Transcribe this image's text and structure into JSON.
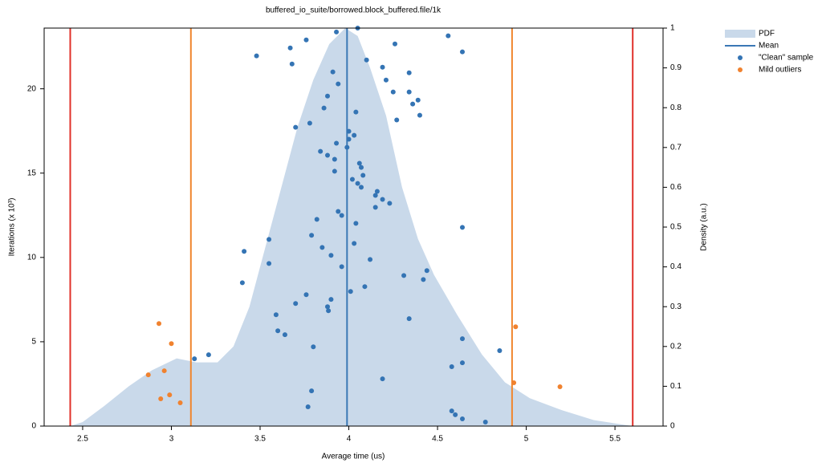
{
  "chart_data": {
    "type": "scatter",
    "title": "buffered_io_suite/borrowed.block_buffered.file/1k",
    "x_label": "Average time (us)",
    "y_label": "Iterations (x 10³)",
    "y2_label": "Density (a.u.)",
    "xlim": [
      2.283,
      5.771
    ],
    "xticks": [
      2.5,
      3,
      3.5,
      4,
      4.5,
      5,
      5.5
    ],
    "ylim": [
      0,
      23.6
    ],
    "yticks": [
      0,
      5,
      10,
      15,
      20
    ],
    "y2lim": [
      0,
      1
    ],
    "y2ticks": [
      0,
      0.1,
      0.2,
      0.3,
      0.4,
      0.5,
      0.6,
      0.7,
      0.8,
      0.9,
      1
    ],
    "legend": "outside-right",
    "vlines": [
      {
        "x": 2.43,
        "color": "#e0302a"
      },
      {
        "x": 3.11,
        "color": "#f0862e"
      },
      {
        "x": 4.92,
        "color": "#f0862e"
      },
      {
        "x": 5.6,
        "color": "#e0302a"
      }
    ],
    "series": [
      {
        "name": "PDF",
        "style": "area",
        "axis": "y2",
        "color": "#c9d9ea",
        "x": [
          2.43,
          2.5,
          2.62,
          2.76,
          2.89,
          3.03,
          3.14,
          3.26,
          3.35,
          3.44,
          3.53,
          3.62,
          3.71,
          3.8,
          3.89,
          3.98,
          4.05,
          4.12,
          4.21,
          4.3,
          4.39,
          4.48,
          4.61,
          4.75,
          4.88,
          5.02,
          5.2,
          5.38,
          5.6
        ],
        "values": [
          0,
          0.01,
          0.05,
          0.1,
          0.14,
          0.17,
          0.16,
          0.16,
          0.2,
          0.3,
          0.45,
          0.6,
          0.75,
          0.87,
          0.96,
          1,
          0.98,
          0.9,
          0.78,
          0.6,
          0.47,
          0.38,
          0.28,
          0.18,
          0.11,
          0.07,
          0.04,
          0.015,
          0
        ]
      },
      {
        "name": "Mean",
        "style": "vline",
        "color": "#3a78b5",
        "x": [
          3.99
        ]
      },
      {
        "name": "\"Clean\" sample",
        "style": "points",
        "color": "#3474b4",
        "x": [
          4.05,
          3.93,
          4.56,
          3.76,
          4.26,
          3.67,
          4.64,
          3.48,
          4.1,
          3.68,
          4.19,
          3.91,
          4.34,
          4.21,
          3.94,
          4.34,
          4.25,
          4.39,
          3.88,
          4.36,
          3.86,
          4.04,
          4.4,
          4.27,
          3.78,
          3.7,
          4.0,
          4.03,
          4.0,
          3.93,
          3.99,
          3.84,
          3.88,
          3.92,
          4.06,
          4.07,
          4.08,
          3.92,
          4.02,
          4.05,
          4.07,
          4.16,
          4.15,
          4.19,
          4.23,
          4.15,
          3.94,
          3.96,
          3.82,
          4.04,
          4.64,
          3.79,
          3.55,
          4.03,
          3.85,
          3.41,
          3.9,
          4.12,
          3.55,
          3.96,
          4.44,
          4.31,
          4.42,
          3.4,
          4.09,
          4.01,
          3.76,
          3.7,
          3.9,
          3.88,
          3.885,
          3.59,
          4.34,
          3.6,
          3.64,
          4.64,
          4.85,
          3.8,
          3.21,
          3.13,
          4.64,
          4.58,
          4.19,
          3.79,
          4.58,
          4.6,
          3.77,
          4.64,
          4.77
        ],
        "values": [
          23.6,
          23.37,
          23.14,
          22.9,
          22.66,
          22.42,
          22.19,
          21.95,
          21.71,
          21.47,
          21.28,
          21.0,
          20.95,
          20.52,
          20.29,
          19.81,
          19.81,
          19.33,
          19.57,
          19.1,
          18.86,
          18.62,
          18.43,
          18.15,
          17.96,
          17.72,
          17.48,
          17.24,
          17.01,
          16.77,
          16.53,
          16.29,
          16.06,
          15.82,
          15.58,
          15.34,
          14.87,
          15.11,
          14.63,
          14.39,
          14.16,
          13.92,
          13.68,
          13.44,
          13.21,
          12.97,
          12.73,
          12.49,
          12.26,
          12.02,
          11.78,
          11.31,
          11.07,
          10.83,
          10.59,
          10.36,
          10.12,
          9.88,
          9.64,
          9.45,
          9.22,
          8.93,
          8.69,
          8.5,
          8.27,
          7.98,
          7.79,
          7.27,
          7.51,
          7.08,
          6.84,
          6.6,
          6.37,
          5.65,
          5.42,
          5.18,
          4.47,
          4.7,
          4.23,
          3.99,
          3.75,
          3.52,
          2.8,
          2.09,
          0.9,
          0.67,
          1.14,
          0.43,
          0.24
        ]
      },
      {
        "name": "Mild outliers",
        "style": "points",
        "color": "#f0822f",
        "x": [
          2.93,
          3.0,
          4.94,
          2.87,
          2.96,
          2.99,
          2.94,
          3.05,
          4.93,
          5.19
        ],
        "values": [
          6.08,
          4.89,
          5.89,
          3.04,
          3.28,
          1.85,
          1.62,
          1.38,
          2.57,
          2.33
        ]
      }
    ]
  }
}
